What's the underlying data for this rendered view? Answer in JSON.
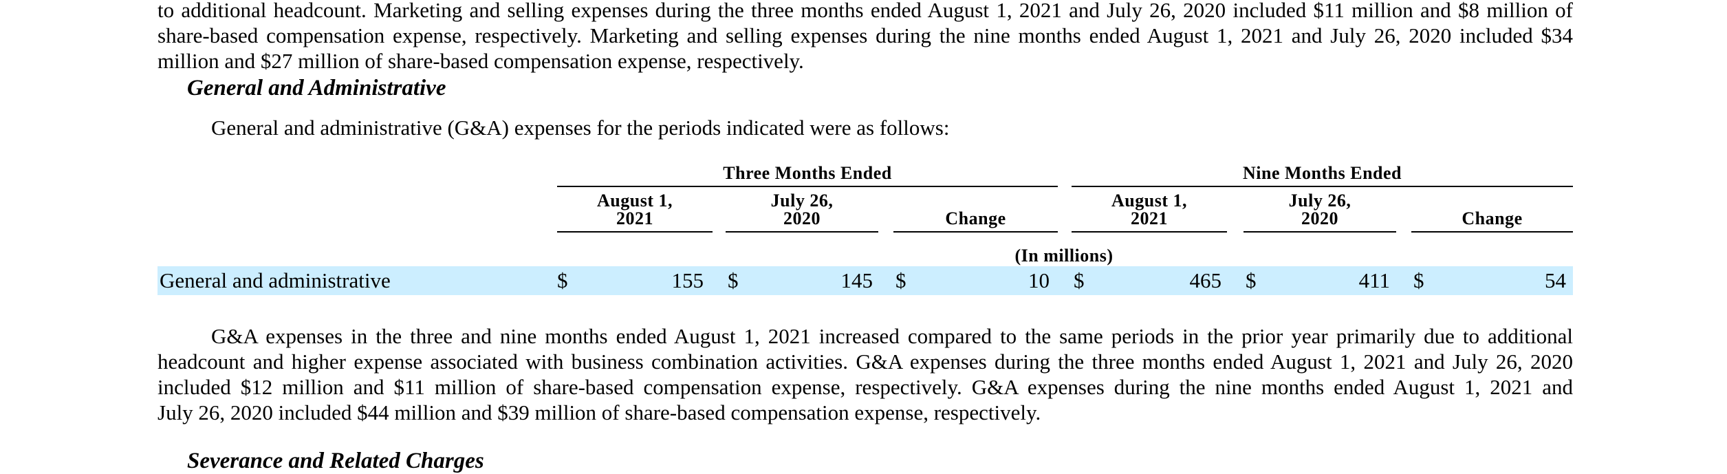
{
  "top_paragraph": {
    "lines": [
      "to additional headcount. Marketing and selling expenses during the three months ended August 1, 2021 and July 26, 2020 included $11 million and $8 million of",
      "share-based compensation expense, respectively. Marketing and selling expenses during the nine months ended August 1, 2021 and July 26, 2020 included $34",
      "million and $27 million of share-based compensation expense, respectively."
    ]
  },
  "section_heading": "General and Administrative",
  "intro_text": "General and administrative (G&A) expenses for the periods indicated were as follows:",
  "table": {
    "group_headers": [
      "Three Months Ended",
      "Nine Months Ended"
    ],
    "columns": [
      [
        "August 1,",
        "2021"
      ],
      [
        "July 26,",
        "2020"
      ],
      [
        "Change"
      ],
      [
        "August 1,",
        "2021"
      ],
      [
        "July 26,",
        "2020"
      ],
      [
        "Change"
      ]
    ],
    "units_note": "(In millions)",
    "rows": [
      {
        "label": "General and administrative",
        "currency_symbol": "$",
        "values": [
          "155",
          "145",
          "10",
          "465",
          "411",
          "54"
        ]
      }
    ],
    "row_highlight_color": "#cceeff"
  },
  "bottom_paragraph": {
    "lines": [
      "G&A expenses in the three and nine months ended August 1, 2021 increased compared to the same periods in the prior year primarily due to additional",
      "headcount and higher expense associated with business combination activities. G&A expenses during the three months ended August 1, 2021 and July 26, 2020",
      "included $12 million and $11 million of share-based compensation expense, respectively. G&A expenses during the nine months ended August 1, 2021 and",
      "July 26, 2020 included $44 million and $39 million of share-based compensation expense, respectively."
    ]
  },
  "next_heading": "Severance and Related Charges"
}
